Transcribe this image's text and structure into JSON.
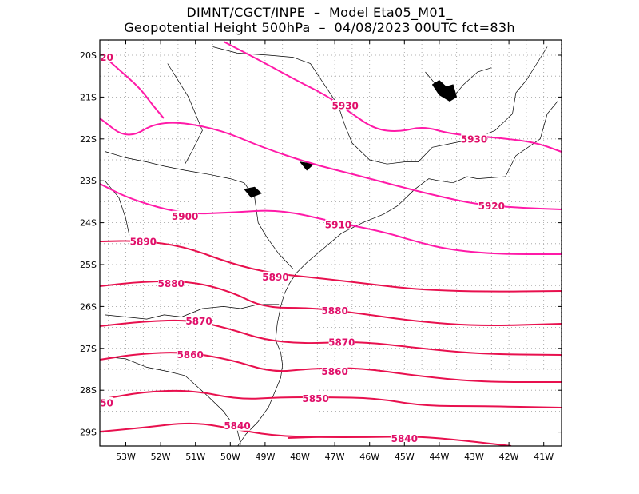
{
  "title": {
    "line1": "DIMNT/CGCT/INPE  –  Model Eta05_M01_",
    "line2": "Geopotential Height 500hPa  –  04/08/2023 00UTC fct=83h"
  },
  "colors": {
    "contour_light": "#ff1aa8",
    "contour_dark": "#e8104e",
    "label": "#e0106a",
    "coast": "#000000",
    "grid": "#9a9a9a"
  },
  "axes": {
    "lat_labels": [
      "20S",
      "21S",
      "22S",
      "23S",
      "24S",
      "25S",
      "26S",
      "27S",
      "28S",
      "29S"
    ],
    "lon_labels": [
      "53W",
      "52W",
      "51W",
      "50W",
      "49W",
      "48W",
      "47W",
      "46W",
      "45W",
      "44W",
      "43W",
      "42W",
      "41W"
    ]
  },
  "contour_labels": [
    {
      "text": "20",
      "lon": -53.55,
      "lat": -20.05
    },
    {
      "text": "5930",
      "lon": -46.7,
      "lat": -21.2
    },
    {
      "text": "5930",
      "lon": -43.0,
      "lat": -22.0
    },
    {
      "text": "5920",
      "lon": -42.5,
      "lat": -23.6
    },
    {
      "text": "5910",
      "lon": -46.9,
      "lat": -24.05
    },
    {
      "text": "5900",
      "lon": -51.3,
      "lat": -23.85
    },
    {
      "text": "5890",
      "lon": -52.5,
      "lat": -24.45
    },
    {
      "text": "5890",
      "lon": -48.7,
      "lat": -25.3
    },
    {
      "text": "5880",
      "lon": -51.7,
      "lat": -25.45
    },
    {
      "text": "5880",
      "lon": -47.0,
      "lat": -26.1
    },
    {
      "text": "5870",
      "lon": -50.9,
      "lat": -26.35
    },
    {
      "text": "5870",
      "lon": -46.8,
      "lat": -26.85
    },
    {
      "text": "5860",
      "lon": -51.15,
      "lat": -27.15
    },
    {
      "text": "5860",
      "lon": -47.0,
      "lat": -27.55
    },
    {
      "text": "50",
      "lon": -53.55,
      "lat": -28.3
    },
    {
      "text": "5850",
      "lon": -47.55,
      "lat": -28.2
    },
    {
      "text": "5840",
      "lon": -49.8,
      "lat": -28.85
    },
    {
      "text": "5840",
      "lon": -45.0,
      "lat": -29.15
    }
  ]
}
